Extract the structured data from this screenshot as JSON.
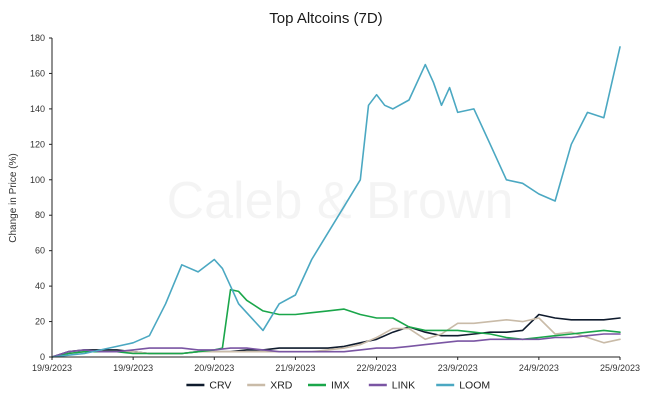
{
  "chart_data": {
    "type": "line",
    "title": "Top Altcoins (7D)",
    "watermark": "Caleb & Brown",
    "xlabel": "",
    "ylabel": "Change in Price (%)",
    "xlim": [
      0,
      7
    ],
    "ylim": [
      0,
      180
    ],
    "yticks": [
      0,
      20,
      40,
      60,
      80,
      100,
      120,
      140,
      160,
      180
    ],
    "xticks": [
      {
        "x": 0,
        "label": "19/9/2023"
      },
      {
        "x": 1,
        "label": "19/9/2023"
      },
      {
        "x": 2,
        "label": "20/9/2023"
      },
      {
        "x": 3,
        "label": "21/9/2023"
      },
      {
        "x": 4,
        "label": "22/9/2023"
      },
      {
        "x": 5,
        "label": "23/9/2023"
      },
      {
        "x": 6,
        "label": "24/9/2023"
      },
      {
        "x": 7,
        "label": "25/9/2023"
      }
    ],
    "grid": false,
    "legend_position": "bottom",
    "series": [
      {
        "name": "CRV",
        "color": "#0f1b2d",
        "x": [
          0.0,
          0.2,
          0.4,
          0.6,
          0.8,
          1.0,
          1.2,
          1.4,
          1.6,
          1.8,
          2.0,
          2.2,
          2.4,
          2.6,
          2.8,
          3.0,
          3.2,
          3.4,
          3.6,
          3.8,
          4.0,
          4.2,
          4.4,
          4.6,
          4.8,
          5.0,
          5.2,
          5.4,
          5.6,
          5.8,
          6.0,
          6.2,
          6.4,
          6.6,
          6.8,
          7.0
        ],
        "y": [
          0,
          3,
          4,
          4,
          4,
          3,
          2,
          2,
          2,
          3,
          3,
          3,
          4,
          4,
          5,
          5,
          5,
          5,
          6,
          8,
          10,
          14,
          17,
          14,
          12,
          12,
          13,
          14,
          14,
          15,
          24,
          22,
          21,
          21,
          21,
          22
        ]
      },
      {
        "name": "XRD",
        "color": "#c9bba8",
        "x": [
          0.0,
          0.2,
          0.4,
          0.6,
          0.8,
          1.0,
          1.2,
          1.4,
          1.6,
          1.8,
          2.0,
          2.2,
          2.4,
          2.6,
          2.8,
          3.0,
          3.2,
          3.4,
          3.6,
          3.8,
          4.0,
          4.2,
          4.4,
          4.6,
          4.8,
          5.0,
          5.2,
          5.4,
          5.6,
          5.8,
          6.0,
          6.2,
          6.4,
          6.6,
          6.8,
          7.0
        ],
        "y": [
          0,
          2,
          3,
          3,
          3,
          3,
          2,
          2,
          2,
          3,
          3,
          3,
          3,
          3,
          3,
          3,
          3,
          4,
          5,
          7,
          11,
          16,
          16,
          10,
          13,
          19,
          19,
          20,
          21,
          20,
          22,
          13,
          14,
          11,
          8,
          10
        ]
      },
      {
        "name": "IMX",
        "color": "#1aa64a",
        "x": [
          0.0,
          0.2,
          0.4,
          0.6,
          0.8,
          1.0,
          1.2,
          1.4,
          1.6,
          1.8,
          2.0,
          2.1,
          2.2,
          2.3,
          2.4,
          2.6,
          2.8,
          3.0,
          3.2,
          3.4,
          3.6,
          3.8,
          4.0,
          4.2,
          4.4,
          4.6,
          4.8,
          5.0,
          5.2,
          5.4,
          5.6,
          5.8,
          6.0,
          6.2,
          6.4,
          6.6,
          6.8,
          7.0
        ],
        "y": [
          0,
          2,
          3,
          3,
          3,
          2,
          2,
          2,
          2,
          3,
          4,
          5,
          38,
          37,
          32,
          26,
          24,
          24,
          25,
          26,
          27,
          24,
          22,
          22,
          17,
          15,
          15,
          15,
          14,
          13,
          11,
          10,
          11,
          12,
          13,
          14,
          15,
          14
        ]
      },
      {
        "name": "LINK",
        "color": "#7a55a3",
        "x": [
          0.0,
          0.2,
          0.4,
          0.6,
          0.8,
          1.0,
          1.2,
          1.4,
          1.6,
          1.8,
          2.0,
          2.2,
          2.4,
          2.6,
          2.8,
          3.0,
          3.2,
          3.4,
          3.6,
          3.8,
          4.0,
          4.2,
          4.4,
          4.6,
          4.8,
          5.0,
          5.2,
          5.4,
          5.6,
          5.8,
          6.0,
          6.2,
          6.4,
          6.6,
          6.8,
          7.0
        ],
        "y": [
          0,
          3,
          4,
          3,
          3,
          4,
          5,
          5,
          5,
          4,
          4,
          5,
          5,
          4,
          3,
          3,
          3,
          3,
          3,
          4,
          5,
          5,
          6,
          7,
          8,
          9,
          9,
          10,
          10,
          10,
          10,
          11,
          11,
          12,
          13,
          13
        ]
      },
      {
        "name": "LOOM",
        "color": "#4ba8c2",
        "x": [
          0.0,
          0.2,
          0.4,
          0.6,
          0.8,
          1.0,
          1.2,
          1.4,
          1.6,
          1.8,
          2.0,
          2.1,
          2.2,
          2.3,
          2.4,
          2.6,
          2.8,
          3.0,
          3.2,
          3.4,
          3.6,
          3.8,
          3.9,
          4.0,
          4.1,
          4.2,
          4.4,
          4.6,
          4.7,
          4.8,
          4.9,
          5.0,
          5.2,
          5.4,
          5.6,
          5.8,
          6.0,
          6.2,
          6.4,
          6.6,
          6.8,
          7.0
        ],
        "y": [
          0,
          1,
          2,
          4,
          6,
          8,
          12,
          30,
          52,
          48,
          55,
          50,
          40,
          30,
          25,
          15,
          30,
          35,
          55,
          70,
          85,
          100,
          142,
          148,
          142,
          140,
          145,
          165,
          155,
          142,
          152,
          138,
          140,
          120,
          100,
          98,
          92,
          88,
          120,
          138,
          135,
          175
        ]
      }
    ]
  }
}
